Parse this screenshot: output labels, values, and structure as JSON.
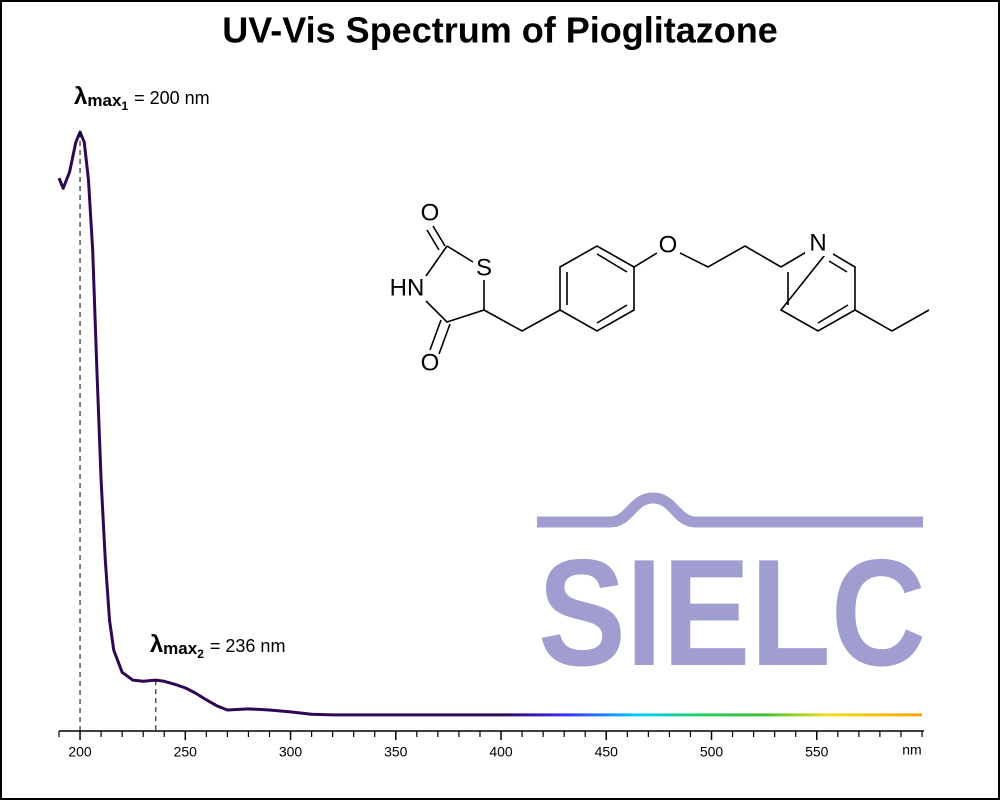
{
  "chart_data": {
    "type": "line",
    "title": "UV-Vis Spectrum of Pioglitazone",
    "x": [
      190,
      192,
      195,
      198,
      200,
      202,
      204,
      206,
      208,
      210,
      212,
      214,
      216,
      220,
      225,
      230,
      236,
      240,
      245,
      250,
      255,
      260,
      265,
      270,
      280,
      290,
      300,
      310,
      320,
      350,
      400,
      450,
      500,
      550,
      600
    ],
    "values": [
      0.923,
      0.906,
      0.933,
      0.983,
      1.0,
      0.983,
      0.92,
      0.803,
      0.603,
      0.419,
      0.285,
      0.185,
      0.135,
      0.098,
      0.085,
      0.083,
      0.085,
      0.083,
      0.078,
      0.072,
      0.063,
      0.052,
      0.042,
      0.035,
      0.037,
      0.035,
      0.032,
      0.028,
      0.027,
      0.027,
      0.027,
      0.027,
      0.027,
      0.027,
      0.027
    ],
    "color": "#2e0854",
    "gradient": [
      {
        "x": 400,
        "color": "#2e0854"
      },
      {
        "x": 430,
        "color": "#3a2aff"
      },
      {
        "x": 465,
        "color": "#00d0ff"
      },
      {
        "x": 495,
        "color": "#20d060"
      },
      {
        "x": 525,
        "color": "#40c030"
      },
      {
        "x": 555,
        "color": "#f0e020"
      },
      {
        "x": 600,
        "color": "#ffa000"
      }
    ],
    "xlim": [
      190,
      600
    ],
    "ylim": [
      0,
      1
    ],
    "xticks": [
      200,
      250,
      300,
      350,
      400,
      450,
      500,
      550
    ],
    "xminorticks": [
      190,
      210,
      220,
      230,
      240,
      260,
      270,
      280,
      290,
      310,
      320,
      330,
      340,
      360,
      370,
      380,
      390,
      410,
      420,
      430,
      440,
      460,
      470,
      480,
      490,
      510,
      520,
      530,
      540,
      560,
      570,
      580,
      590,
      600
    ],
    "x_label": "nm",
    "annotations": [
      {
        "x": 200,
        "y": 1.0,
        "symbol": "λ",
        "subscript": "max",
        "index": "1",
        "text": "= 200 nm"
      },
      {
        "x": 236,
        "y": 0.085,
        "symbol": "λ",
        "subscript": "max",
        "index": "2",
        "text": "= 236 nm"
      }
    ]
  },
  "structure": {
    "atoms": [
      "O",
      "S",
      "HN",
      "O",
      "O",
      "N"
    ]
  },
  "logo": "SIELC"
}
